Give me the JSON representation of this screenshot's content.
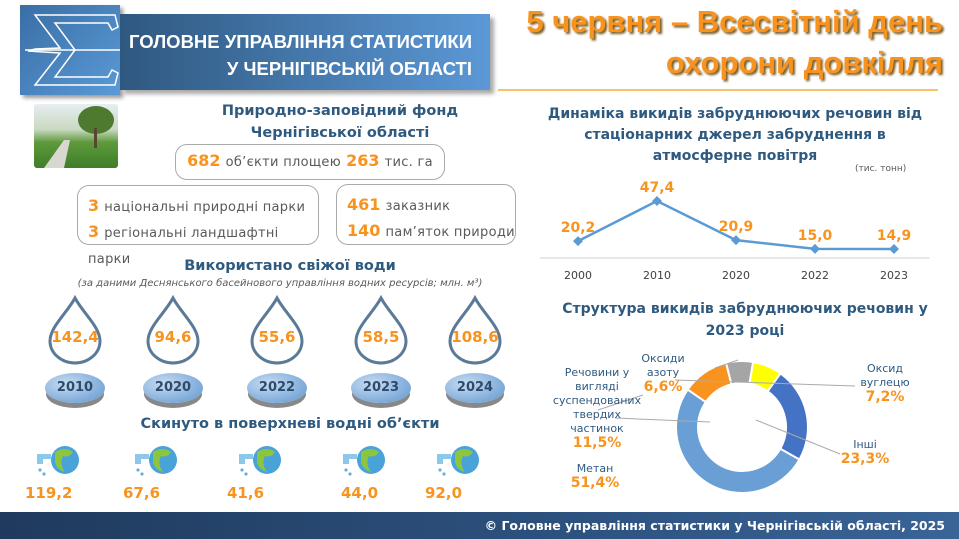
{
  "header": {
    "org_line1": "ГОЛОВНЕ УПРАВЛІННЯ СТАТИСТИКИ",
    "org_line2": "У ЧЕРНІГІВСЬКІЙ ОБЛАСТІ",
    "title_line1": "5 червня – Всесвітній день",
    "title_line2": "охорони довкілля"
  },
  "reserve": {
    "title_line1": "Природно-заповідний фонд",
    "title_line2": "Чернігівської області",
    "objects": "682",
    "objects_label": "об’єкти площею",
    "area": "263",
    "area_label": "тис. га",
    "items_left": [
      {
        "value": "3",
        "label": "національні природні парки"
      },
      {
        "value": "3",
        "label": "регіональні ландшафтні парки"
      }
    ],
    "items_right": [
      {
        "value": "461",
        "label": "заказник"
      },
      {
        "value": "140",
        "label": "пам’яток природи"
      }
    ]
  },
  "water": {
    "title": "Використано свіжої води",
    "subtitle": "(за даними Деснянського басейнового управління водних ресурсів; млн. м³)",
    "years": [
      "2010",
      "2020",
      "2022",
      "2023",
      "2024"
    ],
    "values": [
      "142,4",
      "94,6",
      "55,6",
      "58,5",
      "108,6"
    ],
    "discharge_title": "Скинуто в поверхневі водні об’єкти",
    "discharge_values": [
      "119,2",
      "67,6",
      "41,6",
      "44,0",
      "92,0"
    ]
  },
  "chart_data": [
    {
      "type": "line",
      "title": "Динаміка викидів забруднюючих речовин від стаціонарних джерел забруднення в атмосферне повітря",
      "unit": "(тис. тонн)",
      "categories": [
        "2000",
        "2010",
        "2020",
        "2022",
        "2023"
      ],
      "values": [
        20.2,
        47.4,
        20.9,
        15.0,
        14.9
      ],
      "labels": [
        "20,2",
        "47,4",
        "20,9",
        "15,0",
        "14,9"
      ],
      "color": "#5B9BD5",
      "label_color": "#F7931E",
      "grid": false
    },
    {
      "type": "pie",
      "subtype": "donut",
      "title": "Структура викидів забруднюючих речовин у 2023 році",
      "slices": [
        {
          "name": "Оксиди азоту",
          "value": 6.6,
          "label": "6,6%",
          "color": "#A5A5A5"
        },
        {
          "name": "Оксид вуглецю",
          "value": 7.2,
          "label": "7,2%",
          "color": "#FFFF00"
        },
        {
          "name": "Інші",
          "value": 23.3,
          "label": "23,3%",
          "color": "#4472C4"
        },
        {
          "name": "Метан",
          "value": 51.4,
          "label": "51,4%",
          "color": "#6A9FD6"
        },
        {
          "name": "Речовини у вигляді суспендованих твердих частинок",
          "value": 11.5,
          "label": "11,5%",
          "color": "#F7931E"
        }
      ]
    }
  ],
  "footer": "© Головне управління статистики у Чернігівській області, 2025"
}
